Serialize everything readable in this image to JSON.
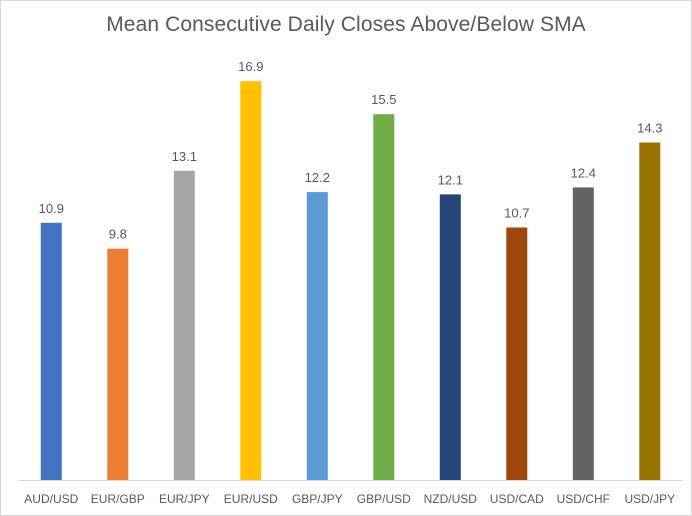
{
  "chart_data": {
    "type": "bar",
    "title": "Mean Consecutive Daily Closes Above/Below SMA",
    "xlabel": "",
    "ylabel": "",
    "categories": [
      "AUD/USD",
      "EUR/GBP",
      "EUR/JPY",
      "EUR/USD",
      "GBP/JPY",
      "GBP/USD",
      "NZD/USD",
      "USD/CAD",
      "USD/CHF",
      "USD/JPY"
    ],
    "values": [
      10.9,
      9.8,
      13.1,
      16.9,
      12.2,
      15.5,
      12.1,
      10.7,
      12.4,
      14.3
    ],
    "value_labels": [
      "10.9",
      "9.8",
      "13.1",
      "16.9",
      "12.2",
      "15.5",
      "12.1",
      "10.7",
      "12.4",
      "14.3"
    ],
    "colors": [
      "#4472c4",
      "#ed7d31",
      "#a5a5a5",
      "#ffc000",
      "#5b9bd5",
      "#70ad47",
      "#264478",
      "#9e480e",
      "#636363",
      "#997300"
    ],
    "ylim": [
      0,
      17.5
    ],
    "grid": false,
    "legend": "none",
    "axis_color": "#d9d9d9",
    "text_color": "#595959"
  }
}
